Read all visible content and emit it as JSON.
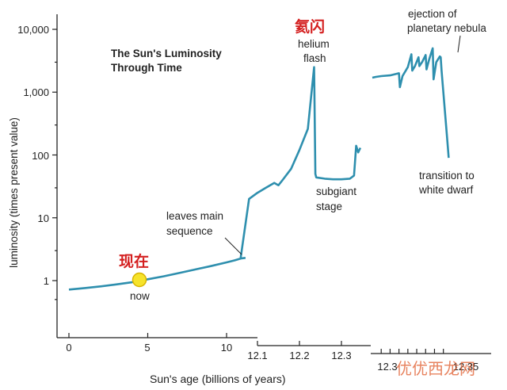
{
  "chart_data": {
    "type": "line",
    "title_line1": "The Sun's Luminosity",
    "title_line2": "Through Time",
    "xlabel": "Sun's age (billions of years)",
    "ylabel": "luminosity (times present value)",
    "y_scale": "log",
    "ylim": [
      0.5,
      12000
    ],
    "y_ticks": [
      "1",
      "10",
      "100",
      "1,000",
      "10,000"
    ],
    "x_ticks_main": [
      "0",
      "5",
      "10"
    ],
    "x_ticks_zoom1": [
      "12.1",
      "12.2",
      "12.3"
    ],
    "x_ticks_zoom2": [
      "12.3",
      "12.35"
    ],
    "series": [
      {
        "x_main": [
          0,
          1,
          2,
          3,
          4,
          4.6,
          5,
          6,
          7,
          8,
          9,
          10,
          10.5,
          10.9,
          11.2
        ],
        "y_main": [
          0.72,
          0.76,
          0.81,
          0.87,
          0.94,
          1.0,
          1.05,
          1.17,
          1.32,
          1.5,
          1.7,
          1.95,
          2.1,
          2.25,
          2.3
        ],
        "x_zoom1": [
          12.06,
          12.08,
          12.1,
          12.12,
          12.14,
          12.15,
          12.16,
          12.18,
          12.2,
          12.22,
          12.235,
          12.238,
          12.24,
          12.26,
          12.28,
          12.3,
          12.32,
          12.33,
          12.335,
          12.34,
          12.345
        ],
        "y_zoom1": [
          2.3,
          20,
          25,
          30,
          36,
          33,
          40,
          60,
          120,
          260,
          2500,
          50,
          44,
          42,
          41,
          41,
          42,
          47,
          140,
          110,
          130
        ],
        "x_zoom2": [
          12.3,
          12.302,
          12.305,
          12.31,
          12.315,
          12.3155,
          12.317,
          12.32,
          12.322,
          12.3225,
          12.324,
          12.326,
          12.3265,
          12.328,
          12.33,
          12.3305,
          12.332,
          12.334,
          12.3345,
          12.336,
          12.338,
          12.3385,
          12.339,
          12.342,
          12.343
        ],
        "y_zoom2": [
          1700,
          1750,
          1800,
          1850,
          2000,
          1200,
          1800,
          2500,
          4000,
          2200,
          2600,
          3600,
          2600,
          3000,
          3900,
          2300,
          3300,
          5000,
          1600,
          3000,
          3700,
          3600,
          2200,
          200,
          90
        ]
      }
    ],
    "annotations": [
      {
        "label": "now",
        "cn": "现在"
      },
      {
        "label_line1": "leaves main",
        "label_line2": "sequence"
      },
      {
        "label_line1": "helium",
        "label_line2": "flash",
        "cn": "氦闪"
      },
      {
        "label_line1": "subgiant",
        "label_line2": "stage"
      },
      {
        "label_line1": "ejection of",
        "label_line2": "planetary nebula"
      },
      {
        "label_line1": "transition to",
        "label_line2": "white dwarf"
      }
    ],
    "grid": false,
    "legend": "none"
  },
  "colors": {
    "line": "#2e8fae",
    "axis": "#222222",
    "now_marker": "#f6e32b",
    "now_marker_edge": "#d8b400",
    "cn_label": "#d42020"
  },
  "watermark": {
    "text": "优优西龙网"
  }
}
